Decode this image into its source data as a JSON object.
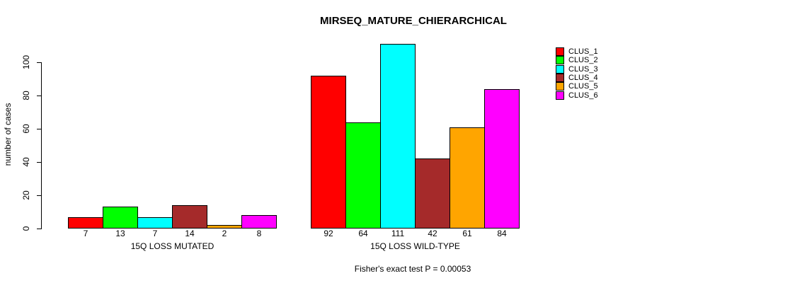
{
  "title": "MIRSEQ_MATURE_CHIERARCHICAL",
  "caption": "Fisher's exact test P = 0.00053",
  "chart_data": {
    "type": "bar",
    "title": "MIRSEQ_MATURE_CHIERARCHICAL",
    "ylabel": "number of cases",
    "xlabel": "",
    "footnote": "Fisher's exact test P = 0.00053",
    "categories": [
      "15Q LOSS MUTATED",
      "15Q LOSS WILD-TYPE"
    ],
    "series": [
      {
        "name": "CLUS_1",
        "color": "#FF0000",
        "values": [
          7,
          92
        ]
      },
      {
        "name": "CLUS_2",
        "color": "#00FF00",
        "values": [
          13,
          64
        ]
      },
      {
        "name": "CLUS_3",
        "color": "#00FFFF",
        "values": [
          7,
          111
        ]
      },
      {
        "name": "CLUS_4",
        "color": "#A52A2A",
        "values": [
          14,
          42
        ]
      },
      {
        "name": "CLUS_5",
        "color": "#FFA500",
        "values": [
          2,
          61
        ]
      },
      {
        "name": "CLUS_6",
        "color": "#FF00FF",
        "values": [
          8,
          84
        ]
      }
    ],
    "yticks": [
      0,
      20,
      40,
      60,
      80,
      100
    ],
    "ylim": [
      0,
      111
    ],
    "grid": false,
    "bar_value_labels_shown": true,
    "legend_position": "right",
    "legend_items": [
      "CLUS_1",
      "CLUS_2",
      "CLUS_3",
      "CLUS_4",
      "CLUS_5",
      "CLUS_6"
    ]
  }
}
